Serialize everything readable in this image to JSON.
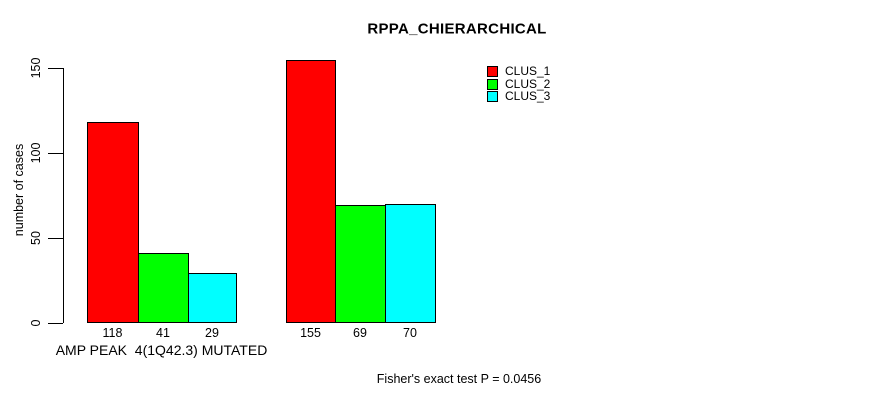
{
  "title": "RPPA_CHIERARCHICAL",
  "annotation": "Fisher's exact test P = 0.0456",
  "chart_data": {
    "type": "bar",
    "title": "RPPA_CHIERARCHICAL",
    "xlabel": "",
    "ylabel": "number of cases",
    "yticks": [
      0,
      50,
      100,
      150
    ],
    "ylim": [
      0,
      155
    ],
    "grid": false,
    "legend_position": "top-right",
    "legend": [
      {
        "label": "CLUS_1",
        "color": "#ff0000"
      },
      {
        "label": "CLUS_2",
        "color": "#00ff00"
      },
      {
        "label": "CLUS_3",
        "color": "#00ffff"
      }
    ],
    "categories": [
      "AMP PEAK  4(1Q42.3) MUTATED",
      ""
    ],
    "series": [
      {
        "name": "CLUS_1",
        "values": [
          118,
          155
        ]
      },
      {
        "name": "CLUS_2",
        "values": [
          41,
          69
        ]
      },
      {
        "name": "CLUS_3",
        "values": [
          29,
          70
        ]
      }
    ],
    "groups": [
      {
        "label": "AMP PEAK  4(1Q42.3) MUTATED",
        "values": [
          118,
          41,
          29
        ]
      },
      {
        "label": "",
        "values": [
          155,
          69,
          70
        ]
      }
    ],
    "bar_value_labels": true,
    "annotation": "Fisher's exact test P = 0.0456"
  }
}
